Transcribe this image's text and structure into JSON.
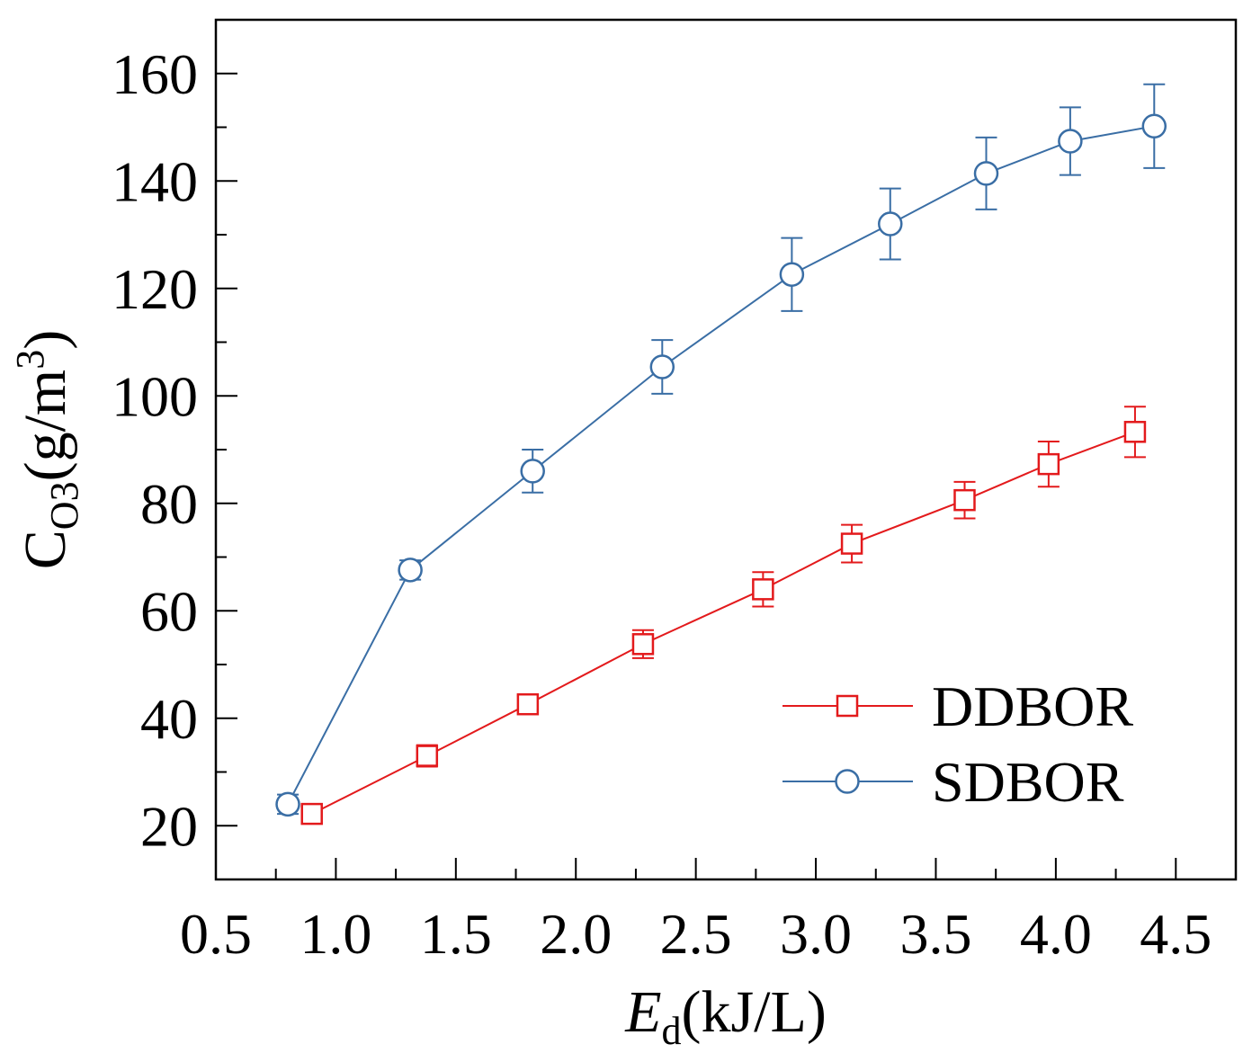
{
  "chart_data": {
    "type": "line",
    "xlabel": {
      "main": "E",
      "sub": "d",
      "unit": "(kJ/L)"
    },
    "ylabel": {
      "main": "C",
      "sub": "O3",
      "unit_pre": "(g/m",
      "sup": "3",
      "unit_post": ")"
    },
    "xlim": [
      0.5,
      4.75
    ],
    "ylim": [
      10,
      170
    ],
    "xticks": [
      0.5,
      1.0,
      1.5,
      2.0,
      2.5,
      3.0,
      3.5,
      4.0,
      4.5
    ],
    "xtick_labels": [
      "0.5",
      "1.0",
      "1.5",
      "2.0",
      "2.5",
      "3.0",
      "3.5",
      "4.0",
      "4.5"
    ],
    "yticks": [
      20,
      40,
      60,
      80,
      100,
      120,
      140,
      160
    ],
    "ytick_labels": [
      "20",
      "40",
      "60",
      "80",
      "100",
      "120",
      "140",
      "160"
    ],
    "grid": false,
    "legend_position": "bottom-right",
    "series": [
      {
        "name": "DDBOR",
        "color": "#e31a1c",
        "marker": "square",
        "x": [
          0.9,
          1.38,
          1.8,
          2.28,
          2.78,
          3.15,
          3.62,
          3.97,
          4.33
        ],
        "y": [
          22.2,
          33.0,
          42.6,
          53.8,
          64.0,
          72.5,
          80.6,
          87.3,
          93.3
        ],
        "err": [
          1.8,
          2.0,
          1.6,
          2.6,
          3.2,
          3.5,
          3.4,
          4.2,
          4.7
        ]
      },
      {
        "name": "SDBOR",
        "color": "#3a6ea5",
        "marker": "circle",
        "x": [
          0.8,
          1.31,
          1.82,
          2.36,
          2.9,
          3.31,
          3.71,
          4.06,
          4.41
        ],
        "y": [
          24.0,
          67.6,
          86.0,
          105.4,
          122.6,
          132.0,
          141.4,
          147.4,
          150.2
        ],
        "err": [
          1.8,
          1.8,
          4.0,
          5.0,
          6.8,
          6.6,
          6.7,
          6.3,
          7.8
        ]
      }
    ]
  }
}
